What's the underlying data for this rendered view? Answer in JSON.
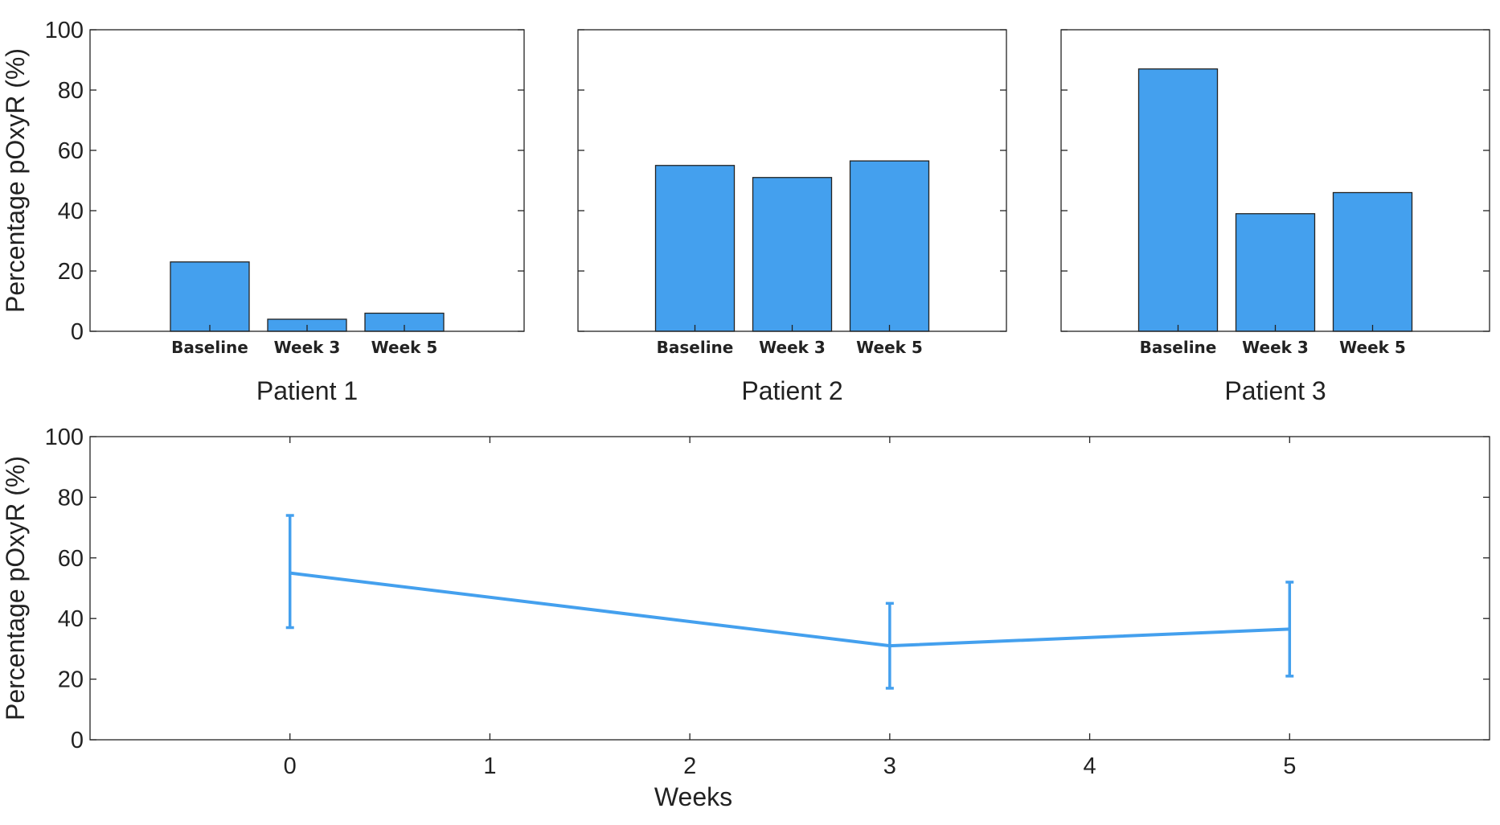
{
  "chart_data": [
    {
      "type": "bar",
      "title": "Patient 1",
      "ylabel": "Percentage pOxyR (%)",
      "ylim": [
        0,
        100
      ],
      "yticks": [
        0,
        20,
        40,
        60,
        80,
        100
      ],
      "categories": [
        "Baseline",
        "Week 3",
        "Week 5"
      ],
      "values": [
        23,
        4,
        6
      ],
      "color": "#44a0ee"
    },
    {
      "type": "bar",
      "title": "Patient 2",
      "ylabel": "",
      "ylim": [
        0,
        100
      ],
      "yticks": [
        0,
        20,
        40,
        60,
        80,
        100
      ],
      "categories": [
        "Baseline",
        "Week 3",
        "Week 5"
      ],
      "values": [
        55,
        51,
        56.5
      ],
      "color": "#44a0ee"
    },
    {
      "type": "bar",
      "title": "Patient 3",
      "ylabel": "",
      "ylim": [
        0,
        100
      ],
      "yticks": [
        0,
        20,
        40,
        60,
        80,
        100
      ],
      "categories": [
        "Baseline",
        "Week 3",
        "Week 5"
      ],
      "values": [
        87,
        39,
        46
      ],
      "color": "#44a0ee"
    },
    {
      "type": "line",
      "title": "",
      "xlabel": "Weeks",
      "ylabel": "Percentage pOxyR (%)",
      "xlim": [
        -1,
        6
      ],
      "ylim": [
        0,
        100
      ],
      "xticks": [
        0,
        1,
        2,
        3,
        4,
        5
      ],
      "yticks": [
        0,
        20,
        40,
        60,
        80,
        100
      ],
      "series": [
        {
          "x": [
            0,
            3,
            5
          ],
          "y": [
            55,
            31,
            36.5
          ],
          "error_low": [
            37,
            17,
            21
          ],
          "error_high": [
            74,
            45,
            52
          ]
        }
      ],
      "color": "#44a0ee"
    }
  ]
}
